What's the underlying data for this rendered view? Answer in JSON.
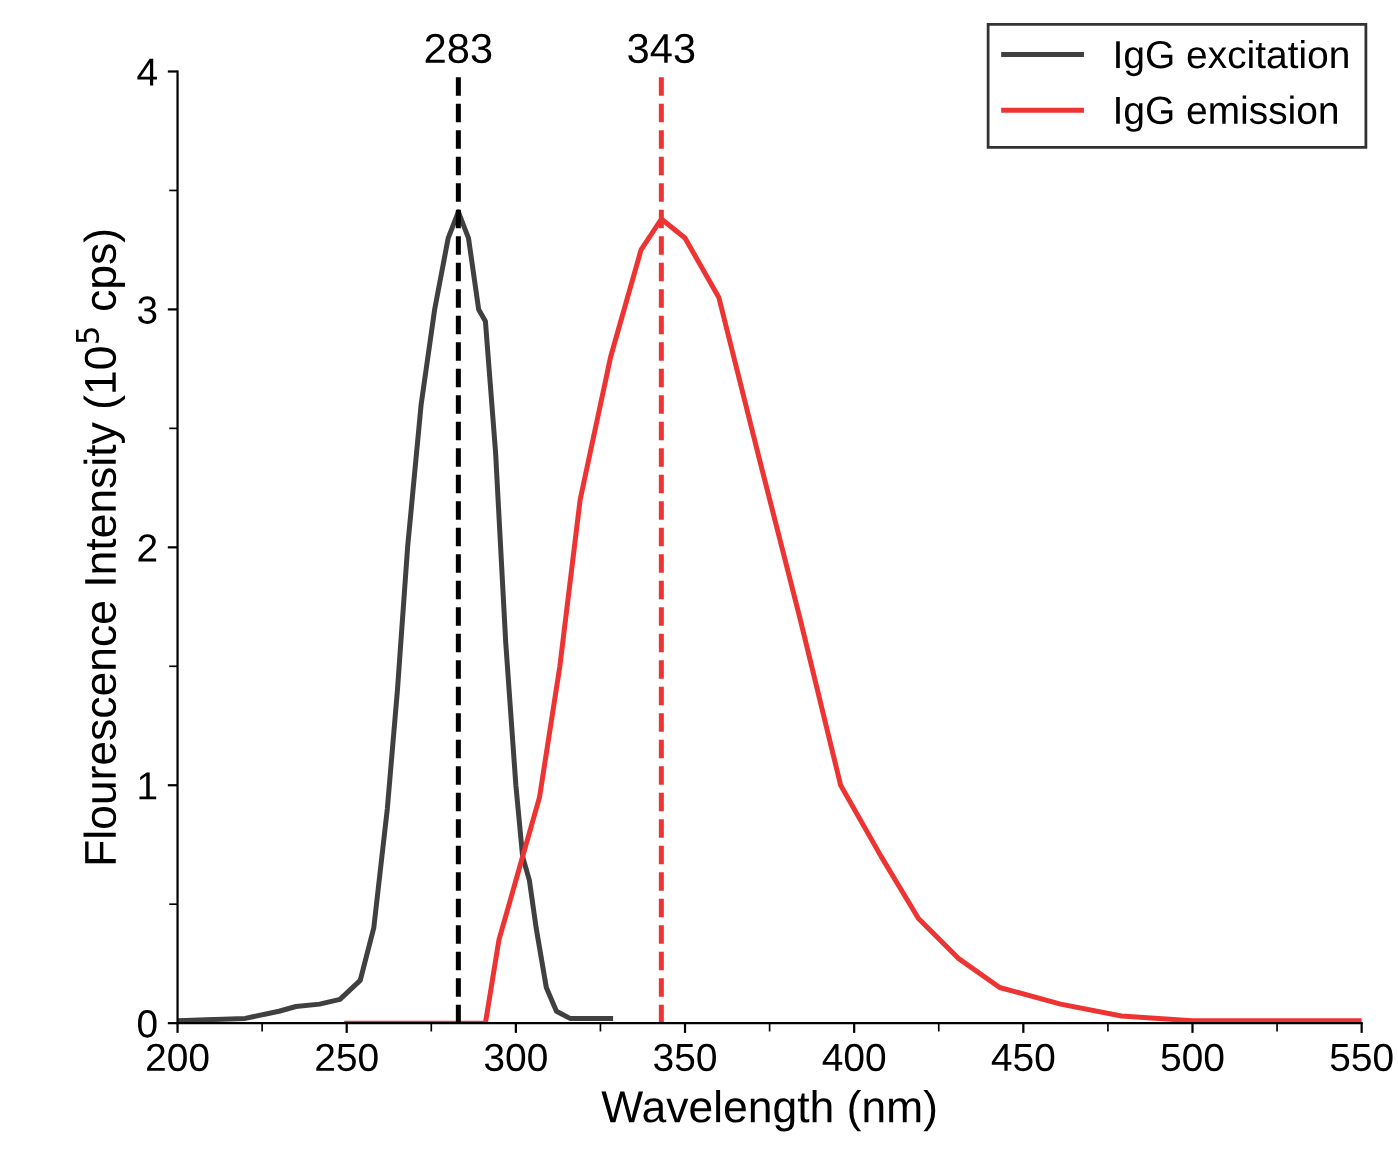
{
  "chart_data": {
    "type": "line",
    "xlabel": "Wavelength (nm)",
    "ylabel": "Flourescence Intensity (10$^{5}$ cps)",
    "xlim": [
      200,
      550
    ],
    "ylim": [
      0,
      4
    ],
    "xticks": [
      200,
      250,
      300,
      350,
      400,
      450,
      500,
      550
    ],
    "yticks": [
      0,
      1,
      2,
      3,
      4
    ],
    "grid": false,
    "legend": "top right",
    "line_style": "solid",
    "marker": "none",
    "series": [
      {
        "name": "IgG excitation",
        "color": "#404040",
        "x": [
          200,
          220,
          230,
          235,
          242,
          248,
          254,
          258,
          262,
          265,
          268,
          272,
          276,
          280,
          283,
          286,
          289,
          291,
          294,
          297,
          300,
          302,
          304,
          306,
          309,
          312,
          316,
          328
        ],
        "values": [
          0.01,
          0.02,
          0.05,
          0.07,
          0.08,
          0.1,
          0.18,
          0.4,
          0.9,
          1.4,
          2.0,
          2.6,
          3.0,
          3.3,
          3.41,
          3.3,
          3.0,
          2.95,
          2.4,
          1.6,
          1.0,
          0.7,
          0.6,
          0.4,
          0.15,
          0.05,
          0.02,
          0.02
        ]
      },
      {
        "name": "IgG emission",
        "color": "#ee3333",
        "x": [
          250,
          270,
          280,
          291,
          295,
          301,
          307,
          313,
          319,
          328,
          337,
          343,
          350,
          360,
          372,
          384,
          396,
          408,
          419,
          431,
          443,
          461,
          479,
          500,
          525,
          550
        ],
        "values": [
          0.0,
          0.0,
          0.0,
          0.0,
          0.35,
          0.65,
          0.95,
          1.5,
          2.2,
          2.8,
          3.25,
          3.38,
          3.3,
          3.05,
          2.37,
          1.7,
          1.0,
          0.7,
          0.44,
          0.27,
          0.15,
          0.08,
          0.03,
          0.01,
          0.01,
          0.01
        ]
      }
    ],
    "ref_lines": [
      {
        "axis": "x",
        "value": 283,
        "label": "283",
        "color": "#000000",
        "line_style": "dashed"
      },
      {
        "axis": "x",
        "value": 343,
        "label": "343",
        "color": "#ee3333",
        "line_style": "dashed"
      }
    ]
  }
}
